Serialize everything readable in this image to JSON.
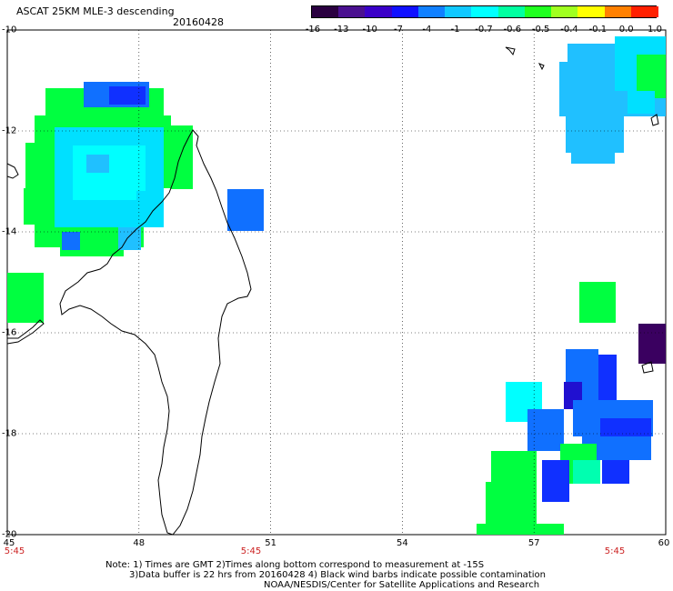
{
  "header": {
    "title": "ASCAT 25KM MLE-3 descending",
    "date": "20160428"
  },
  "colorbar": {
    "ticks": [
      "-16",
      "-13",
      "-10",
      "-7",
      "-4",
      "-1",
      "-0.7",
      "-0.6",
      "-0.5",
      "-0.4",
      "-0.1",
      "0.0",
      "1.0"
    ],
    "colors": [
      "#2a0040",
      "#4a1090",
      "#3a00c8",
      "#1010ff",
      "#1080ff",
      "#10c8ff",
      "#00ffff",
      "#00ffa0",
      "#20ff20",
      "#a0ff20",
      "#ffff00",
      "#ff8000",
      "#ff2000"
    ]
  },
  "axes": {
    "lat_labels": [
      "-10",
      "-12",
      "-14",
      "-16",
      "-18",
      "-20"
    ],
    "lon_labels": [
      "45",
      "48",
      "51",
      "54",
      "57",
      "60"
    ]
  },
  "time_labels": [
    "5:45",
    "5:45",
    "5:45"
  ],
  "notes": {
    "line1": "Note: 1) Times are GMT 2)Times along bottom correspond to measurement at -15S",
    "line2": "3)Data buffer is 22 hrs from 20160428 4) Black wind barbs indicate possible contamination",
    "line3": "NOAA/NESDIS/Center for Satellite Applications and Research"
  },
  "palette": {
    "green": "#00ff40",
    "cyan": "#00ffff",
    "aqua": "#00e0ff",
    "sky": "#20c0ff",
    "blue": "#1070ff",
    "deepblue": "#1030ff",
    "indigo": "#2010d0",
    "purple": "#3a0060",
    "mint": "#00ffb0"
  }
}
